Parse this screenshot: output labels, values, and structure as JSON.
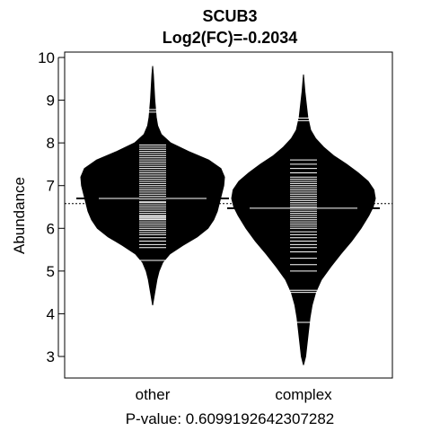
{
  "chart_data": {
    "type": "beanplot",
    "title": "SCUB3",
    "subtitle": "Log2(FC)=-0.2034",
    "ylabel": "Abundance",
    "xlabel": "P-value: 0.6099192642307282",
    "categories": [
      "other",
      "complex"
    ],
    "ylim": [
      2.5,
      10.2
    ],
    "yticks": [
      "3",
      "4",
      "5",
      "6",
      "7",
      "8",
      "9",
      "10"
    ],
    "overall_mean": 6.58,
    "groups": [
      {
        "name": "other",
        "mean": 6.7,
        "density": [
          [
            4.2,
            0.0
          ],
          [
            4.5,
            0.03
          ],
          [
            4.8,
            0.06
          ],
          [
            5.0,
            0.09
          ],
          [
            5.2,
            0.14
          ],
          [
            5.4,
            0.24
          ],
          [
            5.6,
            0.42
          ],
          [
            5.8,
            0.62
          ],
          [
            6.0,
            0.77
          ],
          [
            6.2,
            0.85
          ],
          [
            6.4,
            0.9
          ],
          [
            6.6,
            0.93
          ],
          [
            6.8,
            0.96
          ],
          [
            7.0,
            0.99
          ],
          [
            7.2,
            1.0
          ],
          [
            7.4,
            0.95
          ],
          [
            7.6,
            0.78
          ],
          [
            7.8,
            0.5
          ],
          [
            8.0,
            0.25
          ],
          [
            8.2,
            0.12
          ],
          [
            8.4,
            0.07
          ],
          [
            8.6,
            0.05
          ],
          [
            8.8,
            0.04
          ],
          [
            9.0,
            0.03
          ],
          [
            9.3,
            0.02
          ],
          [
            9.6,
            0.01
          ],
          [
            9.8,
            0.0
          ]
        ],
        "observations": [
          5.25,
          5.55,
          5.62,
          5.7,
          5.78,
          5.85,
          5.9,
          5.95,
          6.0,
          6.05,
          6.1,
          6.15,
          6.2,
          6.22,
          6.25,
          6.28,
          6.3,
          6.35,
          6.4,
          6.45,
          6.5,
          6.55,
          6.6,
          6.62,
          6.68,
          6.7,
          6.75,
          6.8,
          6.85,
          6.9,
          6.95,
          7.0,
          7.05,
          7.1,
          7.15,
          7.2,
          7.25,
          7.3,
          7.35,
          7.4,
          7.45,
          7.5,
          7.55,
          7.6,
          7.65,
          7.7,
          7.75,
          7.8,
          7.85,
          7.9,
          7.95,
          8.72,
          8.78
        ]
      },
      {
        "name": "complex",
        "mean": 6.47,
        "density": [
          [
            2.8,
            0.0
          ],
          [
            3.0,
            0.03
          ],
          [
            3.3,
            0.05
          ],
          [
            3.6,
            0.07
          ],
          [
            3.9,
            0.09
          ],
          [
            4.2,
            0.12
          ],
          [
            4.5,
            0.17
          ],
          [
            4.8,
            0.25
          ],
          [
            5.1,
            0.38
          ],
          [
            5.4,
            0.52
          ],
          [
            5.7,
            0.67
          ],
          [
            6.0,
            0.8
          ],
          [
            6.3,
            0.91
          ],
          [
            6.5,
            0.97
          ],
          [
            6.7,
            1.0
          ],
          [
            6.9,
            0.98
          ],
          [
            7.1,
            0.9
          ],
          [
            7.3,
            0.76
          ],
          [
            7.5,
            0.6
          ],
          [
            7.7,
            0.42
          ],
          [
            7.9,
            0.28
          ],
          [
            8.1,
            0.17
          ],
          [
            8.3,
            0.1
          ],
          [
            8.6,
            0.06
          ],
          [
            8.9,
            0.04
          ],
          [
            9.2,
            0.02
          ],
          [
            9.6,
            0.0
          ]
        ],
        "observations": [
          3.8,
          4.5,
          4.55,
          5.0,
          5.15,
          5.3,
          5.45,
          5.55,
          5.62,
          5.7,
          5.78,
          5.85,
          5.92,
          6.0,
          6.05,
          6.1,
          6.15,
          6.2,
          6.25,
          6.3,
          6.35,
          6.4,
          6.45,
          6.5,
          6.55,
          6.6,
          6.65,
          6.7,
          6.75,
          6.8,
          6.85,
          6.9,
          6.95,
          7.0,
          7.05,
          7.1,
          7.15,
          7.2,
          7.3,
          7.4,
          7.5,
          7.6,
          8.52,
          8.58
        ]
      }
    ]
  }
}
